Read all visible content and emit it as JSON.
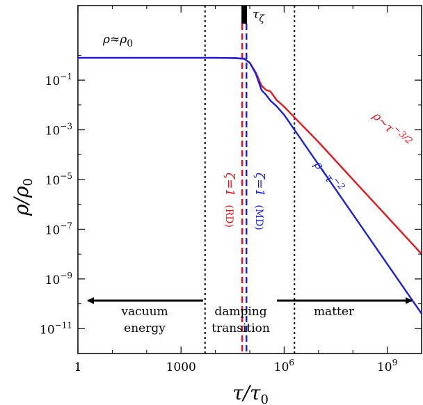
{
  "chart_data": {
    "type": "line",
    "title": "",
    "xlabel": "τ/τ0",
    "ylabel": "ρ/ρ0",
    "x_scale": "log",
    "y_scale": "log",
    "xlim": [
      1,
      10000000000
    ],
    "ylim": [
      1e-12,
      100
    ],
    "x_ticks": [
      {
        "value": 1,
        "label": "1"
      },
      {
        "value": 1000,
        "label": "1000"
      },
      {
        "value": 1000000,
        "label": "10^6"
      },
      {
        "value": 1000000000,
        "label": "10^9"
      }
    ],
    "y_ticks": [
      {
        "value": 0.1,
        "label": "10^-1"
      },
      {
        "value": 0.001,
        "label": "10^-3"
      },
      {
        "value": 1e-05,
        "label": "10^-5"
      },
      {
        "value": 1e-07,
        "label": "10^-7"
      },
      {
        "value": 1e-09,
        "label": "10^-9"
      },
      {
        "value": 1e-11,
        "label": "10^-11"
      }
    ],
    "grid": false,
    "legend": "none",
    "series": [
      {
        "color": "#e8141b",
        "points": [
          [
            1,
            0.79
          ],
          [
            10000,
            0.79
          ],
          [
            40000,
            0.77
          ],
          [
            70000,
            0.72
          ],
          [
            100000,
            0.5
          ],
          [
            150000,
            0.2
          ],
          [
            220000,
            0.06
          ],
          [
            300000,
            0.04
          ],
          [
            400000,
            0.035
          ],
          [
            600000,
            0.016
          ],
          [
            1000000,
            0.0085
          ],
          [
            10000000,
            0.00032
          ],
          [
            100000000,
            1e-05
          ],
          [
            1000000000,
            3.2e-07
          ],
          [
            10000000000,
            1e-08
          ]
        ]
      },
      {
        "color": "#1a20d8",
        "points": [
          [
            1,
            0.79
          ],
          [
            10000,
            0.79
          ],
          [
            40000,
            0.77
          ],
          [
            70000,
            0.72
          ],
          [
            100000,
            0.5
          ],
          [
            150000,
            0.18
          ],
          [
            220000,
            0.04
          ],
          [
            300000,
            0.025
          ],
          [
            400000,
            0.015
          ],
          [
            600000,
            0.009
          ],
          [
            1000000,
            0.004
          ],
          [
            10000000,
            4e-05
          ],
          [
            100000000,
            4e-07
          ],
          [
            1000000000,
            4e-09
          ],
          [
            10000000000,
            4e-11
          ]
        ]
      }
    ],
    "annotations": {
      "rho_const": "ρ≈ρ0",
      "tau_zeta": "τζ",
      "slope_red": "ρ~τ^-3/2",
      "slope_blue": "ρ~τ^-2",
      "zeta_rd": "ζ=1 (RD)",
      "zeta_md": "ζ=1 (MD)",
      "region_left_1": "vacuum",
      "region_left_2": "energy",
      "region_mid_1": "damping",
      "region_mid_2": "transition",
      "region_right": "matter"
    },
    "vertical_lines": {
      "dotted": [
        5000,
        2000000
      ],
      "red_dashed": 60000,
      "blue_dashed": 80000
    },
    "colors": {
      "red": "#e8141b",
      "blue": "#1a20d8"
    }
  }
}
